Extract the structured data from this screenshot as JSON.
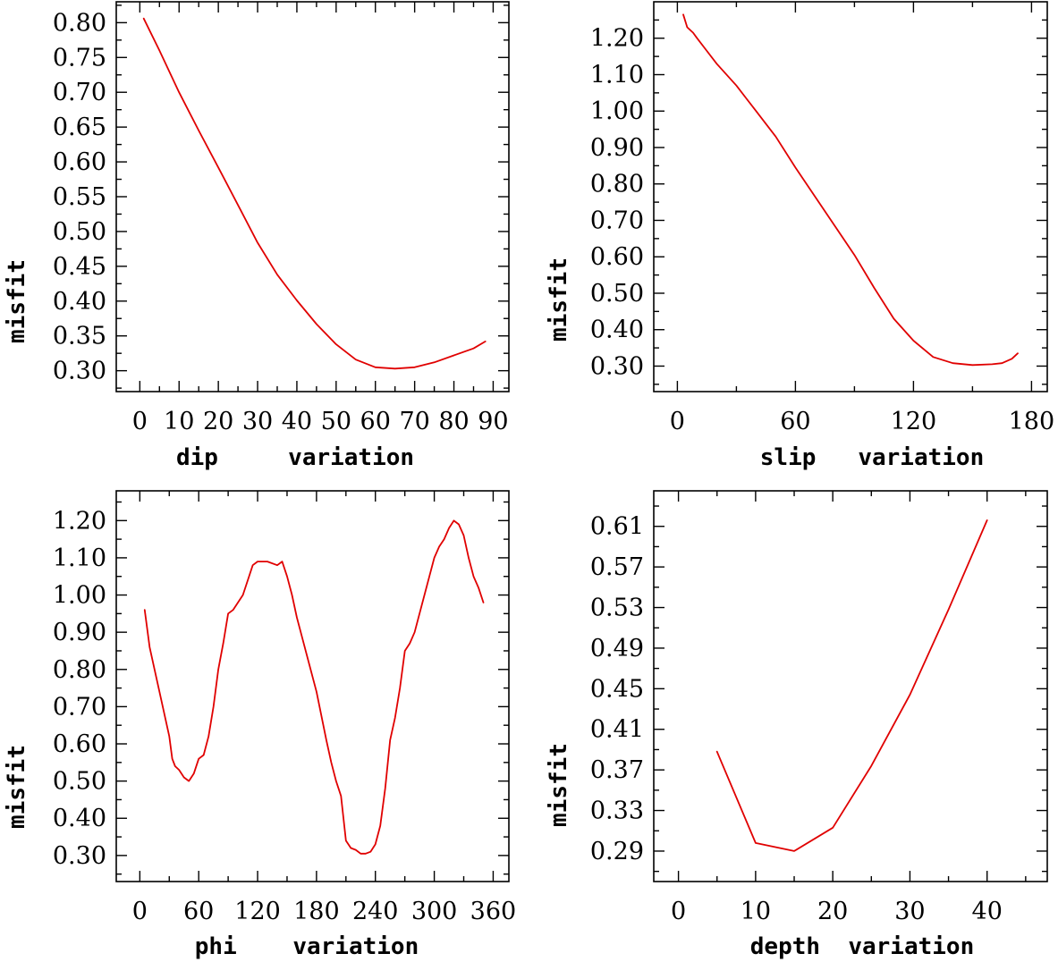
{
  "colors": {
    "line": "#e00000",
    "axis": "#000000",
    "background": "#ffffff"
  },
  "chart_data": [
    {
      "type": "line",
      "title": "",
      "xlabel": "dip     variation",
      "ylabel": "misfit",
      "xlim": [
        -6,
        94
      ],
      "ylim": [
        0.27,
        0.83
      ],
      "xticks": [
        0,
        10,
        20,
        30,
        40,
        50,
        60,
        70,
        80,
        90
      ],
      "xtick_labels": [
        "0",
        "10",
        "20",
        "30",
        "40",
        "50",
        "60",
        "70",
        "80",
        "90"
      ],
      "yticks": [
        0.3,
        0.35,
        0.4,
        0.45,
        0.5,
        0.55,
        0.6,
        0.65,
        0.7,
        0.75,
        0.8
      ],
      "ytick_labels": [
        "0.30",
        "0.35",
        "0.40",
        "0.45",
        "0.50",
        "0.55",
        "0.60",
        "0.65",
        "0.70",
        "0.75",
        "0.80"
      ],
      "x": [
        1,
        5,
        10,
        15,
        20,
        25,
        30,
        35,
        40,
        45,
        50,
        55,
        60,
        65,
        70,
        75,
        80,
        85,
        88
      ],
      "y": [
        0.806,
        0.76,
        0.7,
        0.645,
        0.592,
        0.538,
        0.484,
        0.438,
        0.401,
        0.367,
        0.338,
        0.316,
        0.305,
        0.303,
        0.305,
        0.312,
        0.322,
        0.332,
        0.342
      ]
    },
    {
      "type": "line",
      "title": "",
      "xlabel": "slip   variation",
      "ylabel": "misfit",
      "xlim": [
        -12,
        188
      ],
      "ylim": [
        0.23,
        1.3
      ],
      "xticks": [
        0,
        60,
        120,
        180
      ],
      "xtick_labels": [
        "0",
        "60",
        "120",
        "180"
      ],
      "yticks": [
        0.3,
        0.4,
        0.5,
        0.6,
        0.7,
        0.8,
        0.9,
        1.0,
        1.1,
        1.2
      ],
      "ytick_labels": [
        "0.30",
        "0.40",
        "0.50",
        "0.60",
        "0.70",
        "0.80",
        "0.90",
        "1.00",
        "1.10",
        "1.20"
      ],
      "x": [
        3,
        5,
        8,
        10,
        15,
        20,
        30,
        35,
        40,
        50,
        60,
        70,
        80,
        90,
        100,
        110,
        120,
        130,
        140,
        150,
        160,
        165,
        170,
        173
      ],
      "y": [
        1.265,
        1.23,
        1.215,
        1.2,
        1.165,
        1.13,
        1.07,
        1.035,
        1.0,
        0.93,
        0.845,
        0.765,
        0.685,
        0.605,
        0.515,
        0.43,
        0.37,
        0.325,
        0.308,
        0.303,
        0.305,
        0.308,
        0.32,
        0.335
      ]
    },
    {
      "type": "line",
      "title": "",
      "xlabel": "phi    variation",
      "ylabel": "misfit",
      "xlim": [
        -24,
        376
      ],
      "ylim": [
        0.23,
        1.28
      ],
      "xticks": [
        0,
        60,
        120,
        180,
        240,
        300,
        360
      ],
      "xtick_labels": [
        "0",
        "60",
        "120",
        "180",
        "240",
        "300",
        "360"
      ],
      "yticks": [
        0.3,
        0.4,
        0.5,
        0.6,
        0.7,
        0.8,
        0.9,
        1.0,
        1.1,
        1.2
      ],
      "ytick_labels": [
        "0.30",
        "0.40",
        "0.50",
        "0.60",
        "0.70",
        "0.80",
        "0.90",
        "1.00",
        "1.10",
        "1.20"
      ],
      "x": [
        5,
        10,
        15,
        20,
        25,
        30,
        33,
        36,
        40,
        45,
        50,
        55,
        60,
        65,
        70,
        75,
        80,
        85,
        90,
        95,
        100,
        105,
        110,
        115,
        120,
        130,
        140,
        145,
        150,
        155,
        160,
        165,
        170,
        180,
        190,
        195,
        200,
        205,
        210,
        215,
        220,
        225,
        230,
        235,
        240,
        245,
        250,
        255,
        260,
        265,
        270,
        275,
        280,
        285,
        290,
        295,
        300,
        305,
        310,
        315,
        320,
        325,
        330,
        335,
        340,
        345,
        350
      ],
      "y": [
        0.96,
        0.86,
        0.8,
        0.74,
        0.68,
        0.62,
        0.56,
        0.54,
        0.53,
        0.51,
        0.5,
        0.52,
        0.56,
        0.57,
        0.62,
        0.7,
        0.8,
        0.87,
        0.95,
        0.96,
        0.98,
        1.0,
        1.04,
        1.08,
        1.09,
        1.09,
        1.08,
        1.09,
        1.05,
        1.0,
        0.94,
        0.89,
        0.84,
        0.74,
        0.61,
        0.55,
        0.5,
        0.46,
        0.34,
        0.32,
        0.315,
        0.305,
        0.305,
        0.31,
        0.33,
        0.38,
        0.48,
        0.61,
        0.67,
        0.75,
        0.85,
        0.87,
        0.9,
        0.95,
        1.0,
        1.05,
        1.1,
        1.13,
        1.15,
        1.18,
        1.2,
        1.19,
        1.16,
        1.1,
        1.05,
        1.02,
        0.98
      ]
    },
    {
      "type": "line",
      "title": "",
      "xlabel": "depth  variation",
      "ylabel": "misfit",
      "xlim": [
        -3.2,
        47.8
      ],
      "ylim": [
        0.26,
        0.645
      ],
      "xticks": [
        0,
        10,
        20,
        30,
        40
      ],
      "xtick_labels": [
        "0",
        "10",
        "20",
        "30",
        "40"
      ],
      "yticks": [
        0.29,
        0.33,
        0.37,
        0.41,
        0.45,
        0.49,
        0.53,
        0.57,
        0.61
      ],
      "ytick_labels": [
        "0.29",
        "0.33",
        "0.37",
        "0.41",
        "0.45",
        "0.49",
        "0.53",
        "0.57",
        "0.61"
      ],
      "x": [
        5,
        10,
        15,
        20,
        25,
        30,
        35,
        40
      ],
      "y": [
        0.388,
        0.298,
        0.29,
        0.313,
        0.374,
        0.444,
        0.528,
        0.616
      ]
    }
  ]
}
